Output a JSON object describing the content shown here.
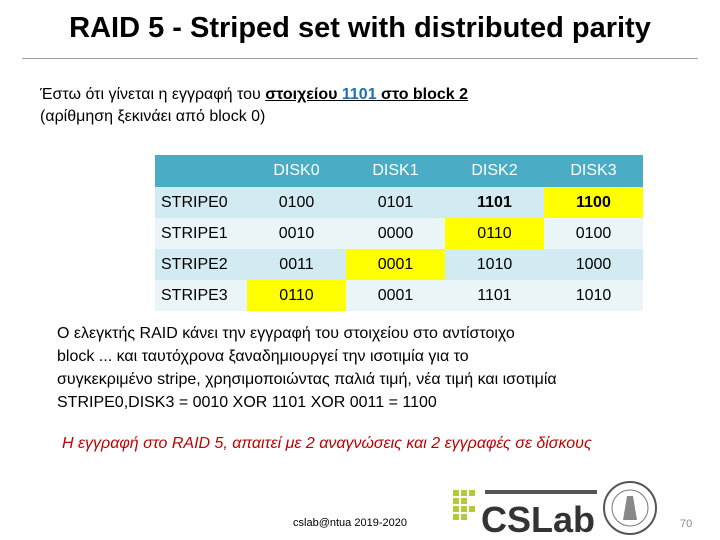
{
  "title": "RAID 5 - Striped set with distributed parity",
  "intro": {
    "line1_start": "Έστω ότι γίνεται η εγγραφή του ",
    "line1_element": "στοιχείου",
    "line1_value": "1101",
    "line1_end": "στο block 2",
    "line2": "(αρίθμηση ξεκινάει από block 0)"
  },
  "table": {
    "header": [
      "DISK0",
      "DISK1",
      "DISK2",
      "DISK3"
    ],
    "rows": [
      [
        "STRIPE0",
        "0100",
        "0101",
        "1101",
        "1100"
      ],
      [
        "STRIPE1",
        "0010",
        "0000",
        "0110",
        "0100"
      ],
      [
        "STRIPE2",
        "0011",
        "0001",
        "1010",
        "1000"
      ],
      [
        "STRIPE3",
        "0110",
        "0001",
        "1101",
        "1010"
      ]
    ]
  },
  "explanation": [
    "Ο ελεγκτής RAID κάνει την εγγραφή του στοιχείου στο αντίστοιχο",
    "block ... και ταυτόχρονα ξαναδημιουργεί την ισοτιμία για το",
    "συγκεκριμένο stripe, χρησιμοποιώντας παλιά τιμή, νέα τιμή και ισοτιμία",
    "STRIPE0,DISK3 = 0010 XOR 1101 XOR 0011 = 1100"
  ],
  "conclusion": "Η εγγραφή στο RAID 5, απαιτεί με 2 αναγνώσεις και 2 εγγραφές σε δίσκους",
  "footer": "cslab@ntua 2019-2020",
  "logo": "CSLab",
  "page_number": "70"
}
